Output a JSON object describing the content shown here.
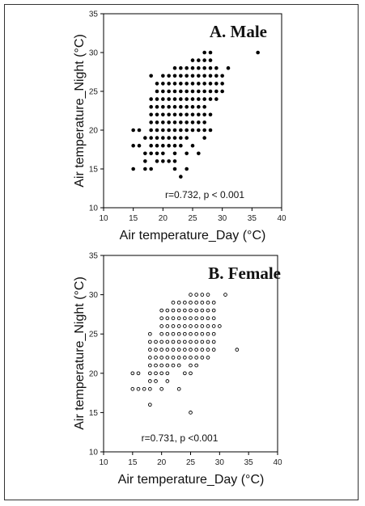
{
  "chart_data": [
    {
      "type": "scatter",
      "title": "A. Male",
      "xlabel": "Air temperature_Day (°C)",
      "ylabel": "Air temperature_Night (°C)",
      "annotation": "r=0.732, p < 0.001",
      "xlim": [
        10,
        40
      ],
      "ylim": [
        10,
        35
      ],
      "xticks": [
        "10",
        "15",
        "20",
        "25",
        "30",
        "35",
        "40"
      ],
      "yticks": [
        "10",
        "15",
        "20",
        "25",
        "30",
        "35"
      ],
      "marker": "filled",
      "color": "#000000",
      "points": [
        [
          15,
          15
        ],
        [
          15,
          18
        ],
        [
          15,
          20
        ],
        [
          16,
          18
        ],
        [
          16,
          20
        ],
        [
          17,
          15
        ],
        [
          17,
          16
        ],
        [
          17,
          17
        ],
        [
          17,
          19
        ],
        [
          18,
          15
        ],
        [
          18,
          17
        ],
        [
          18,
          18
        ],
        [
          18,
          19
        ],
        [
          18,
          20
        ],
        [
          18,
          21
        ],
        [
          18,
          22
        ],
        [
          18,
          23
        ],
        [
          18,
          24
        ],
        [
          18,
          27
        ],
        [
          19,
          16
        ],
        [
          19,
          17
        ],
        [
          19,
          18
        ],
        [
          19,
          19
        ],
        [
          19,
          20
        ],
        [
          19,
          21
        ],
        [
          19,
          22
        ],
        [
          19,
          23
        ],
        [
          19,
          24
        ],
        [
          19,
          25
        ],
        [
          19,
          26
        ],
        [
          20,
          16
        ],
        [
          20,
          17
        ],
        [
          20,
          18
        ],
        [
          20,
          19
        ],
        [
          20,
          20
        ],
        [
          20,
          21
        ],
        [
          20,
          22
        ],
        [
          20,
          23
        ],
        [
          20,
          24
        ],
        [
          20,
          25
        ],
        [
          20,
          26
        ],
        [
          20,
          27
        ],
        [
          21,
          16
        ],
        [
          21,
          18
        ],
        [
          21,
          19
        ],
        [
          21,
          20
        ],
        [
          21,
          21
        ],
        [
          21,
          22
        ],
        [
          21,
          23
        ],
        [
          21,
          24
        ],
        [
          21,
          25
        ],
        [
          21,
          26
        ],
        [
          21,
          27
        ],
        [
          22,
          15
        ],
        [
          22,
          16
        ],
        [
          22,
          17
        ],
        [
          22,
          18
        ],
        [
          22,
          19
        ],
        [
          22,
          20
        ],
        [
          22,
          21
        ],
        [
          22,
          22
        ],
        [
          22,
          23
        ],
        [
          22,
          24
        ],
        [
          22,
          25
        ],
        [
          22,
          26
        ],
        [
          22,
          27
        ],
        [
          22,
          28
        ],
        [
          23,
          14
        ],
        [
          23,
          18
        ],
        [
          23,
          19
        ],
        [
          23,
          20
        ],
        [
          23,
          21
        ],
        [
          23,
          22
        ],
        [
          23,
          23
        ],
        [
          23,
          24
        ],
        [
          23,
          25
        ],
        [
          23,
          26
        ],
        [
          23,
          27
        ],
        [
          23,
          28
        ],
        [
          24,
          15
        ],
        [
          24,
          17
        ],
        [
          24,
          19
        ],
        [
          24,
          20
        ],
        [
          24,
          21
        ],
        [
          24,
          22
        ],
        [
          24,
          23
        ],
        [
          24,
          24
        ],
        [
          24,
          25
        ],
        [
          24,
          26
        ],
        [
          24,
          27
        ],
        [
          24,
          28
        ],
        [
          25,
          18
        ],
        [
          25,
          20
        ],
        [
          25,
          21
        ],
        [
          25,
          22
        ],
        [
          25,
          23
        ],
        [
          25,
          24
        ],
        [
          25,
          25
        ],
        [
          25,
          26
        ],
        [
          25,
          27
        ],
        [
          25,
          28
        ],
        [
          25,
          29
        ],
        [
          26,
          17
        ],
        [
          26,
          20
        ],
        [
          26,
          21
        ],
        [
          26,
          22
        ],
        [
          26,
          23
        ],
        [
          26,
          24
        ],
        [
          26,
          25
        ],
        [
          26,
          26
        ],
        [
          26,
          27
        ],
        [
          26,
          28
        ],
        [
          26,
          29
        ],
        [
          27,
          19
        ],
        [
          27,
          20
        ],
        [
          27,
          21
        ],
        [
          27,
          22
        ],
        [
          27,
          23
        ],
        [
          27,
          24
        ],
        [
          27,
          25
        ],
        [
          27,
          26
        ],
        [
          27,
          27
        ],
        [
          27,
          28
        ],
        [
          27,
          29
        ],
        [
          27,
          30
        ],
        [
          28,
          20
        ],
        [
          28,
          22
        ],
        [
          28,
          24
        ],
        [
          28,
          25
        ],
        [
          28,
          26
        ],
        [
          28,
          27
        ],
        [
          28,
          28
        ],
        [
          28,
          29
        ],
        [
          28,
          30
        ],
        [
          29,
          24
        ],
        [
          29,
          25
        ],
        [
          29,
          26
        ],
        [
          29,
          27
        ],
        [
          29,
          28
        ],
        [
          30,
          25
        ],
        [
          30,
          26
        ],
        [
          30,
          27
        ],
        [
          31,
          28
        ],
        [
          36,
          30
        ]
      ]
    },
    {
      "type": "scatter",
      "title": "B. Female",
      "xlabel": "Air temperature_Day (°C)",
      "ylabel": "Air temperature_Night (°C)",
      "annotation": "r=0.731, p <0.001",
      "xlim": [
        10,
        40
      ],
      "ylim": [
        10,
        35
      ],
      "xticks": [
        "10",
        "15",
        "20",
        "25",
        "30",
        "35",
        "40"
      ],
      "yticks": [
        "10",
        "15",
        "20",
        "25",
        "30",
        "35"
      ],
      "marker": "open",
      "color": "#000000",
      "points": [
        [
          15,
          18
        ],
        [
          15,
          20
        ],
        [
          16,
          18
        ],
        [
          16,
          20
        ],
        [
          17,
          18
        ],
        [
          18,
          16
        ],
        [
          18,
          18
        ],
        [
          18,
          19
        ],
        [
          18,
          20
        ],
        [
          18,
          21
        ],
        [
          18,
          22
        ],
        [
          18,
          23
        ],
        [
          18,
          24
        ],
        [
          18,
          25
        ],
        [
          19,
          19
        ],
        [
          19,
          20
        ],
        [
          19,
          21
        ],
        [
          19,
          22
        ],
        [
          19,
          23
        ],
        [
          19,
          24
        ],
        [
          20,
          18
        ],
        [
          20,
          20
        ],
        [
          20,
          21
        ],
        [
          20,
          22
        ],
        [
          20,
          23
        ],
        [
          20,
          24
        ],
        [
          20,
          25
        ],
        [
          20,
          26
        ],
        [
          20,
          27
        ],
        [
          20,
          28
        ],
        [
          21,
          19
        ],
        [
          21,
          20
        ],
        [
          21,
          21
        ],
        [
          21,
          22
        ],
        [
          21,
          23
        ],
        [
          21,
          24
        ],
        [
          21,
          25
        ],
        [
          21,
          26
        ],
        [
          21,
          27
        ],
        [
          21,
          28
        ],
        [
          22,
          21
        ],
        [
          22,
          22
        ],
        [
          22,
          23
        ],
        [
          22,
          24
        ],
        [
          22,
          25
        ],
        [
          22,
          26
        ],
        [
          22,
          27
        ],
        [
          22,
          28
        ],
        [
          22,
          29
        ],
        [
          23,
          18
        ],
        [
          23,
          21
        ],
        [
          23,
          22
        ],
        [
          23,
          23
        ],
        [
          23,
          24
        ],
        [
          23,
          25
        ],
        [
          23,
          26
        ],
        [
          23,
          27
        ],
        [
          23,
          28
        ],
        [
          23,
          29
        ],
        [
          24,
          20
        ],
        [
          24,
          22
        ],
        [
          24,
          23
        ],
        [
          24,
          24
        ],
        [
          24,
          25
        ],
        [
          24,
          26
        ],
        [
          24,
          27
        ],
        [
          24,
          28
        ],
        [
          24,
          29
        ],
        [
          25,
          15
        ],
        [
          25,
          20
        ],
        [
          25,
          21
        ],
        [
          25,
          22
        ],
        [
          25,
          23
        ],
        [
          25,
          24
        ],
        [
          25,
          25
        ],
        [
          25,
          26
        ],
        [
          25,
          27
        ],
        [
          25,
          28
        ],
        [
          25,
          29
        ],
        [
          25,
          30
        ],
        [
          26,
          21
        ],
        [
          26,
          22
        ],
        [
          26,
          23
        ],
        [
          26,
          24
        ],
        [
          26,
          25
        ],
        [
          26,
          26
        ],
        [
          26,
          27
        ],
        [
          26,
          28
        ],
        [
          26,
          29
        ],
        [
          26,
          30
        ],
        [
          27,
          22
        ],
        [
          27,
          23
        ],
        [
          27,
          24
        ],
        [
          27,
          25
        ],
        [
          27,
          26
        ],
        [
          27,
          27
        ],
        [
          27,
          28
        ],
        [
          27,
          29
        ],
        [
          27,
          30
        ],
        [
          28,
          22
        ],
        [
          28,
          23
        ],
        [
          28,
          24
        ],
        [
          28,
          25
        ],
        [
          28,
          26
        ],
        [
          28,
          27
        ],
        [
          28,
          28
        ],
        [
          28,
          29
        ],
        [
          28,
          30
        ],
        [
          29,
          23
        ],
        [
          29,
          24
        ],
        [
          29,
          25
        ],
        [
          29,
          26
        ],
        [
          29,
          27
        ],
        [
          29,
          28
        ],
        [
          29,
          29
        ],
        [
          30,
          26
        ],
        [
          31,
          30
        ],
        [
          33,
          23
        ]
      ]
    }
  ]
}
